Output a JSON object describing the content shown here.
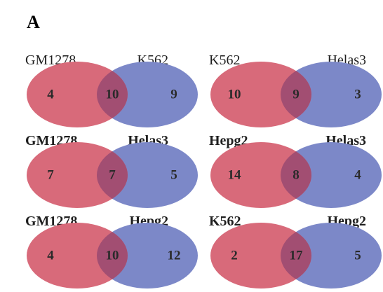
{
  "panel_label": "A",
  "colors": {
    "left": "#d86a7a",
    "right": "#7c88c8",
    "overlap": "#a24e72"
  },
  "venns": [
    {
      "left_label": "GM1278",
      "right_label": "K562",
      "left_only": "4",
      "overlap": "10",
      "right_only": "9",
      "bold_labels": false
    },
    {
      "left_label": "K562",
      "right_label": "Helas3",
      "left_only": "10",
      "overlap": "9",
      "right_only": "3",
      "bold_labels": false
    },
    {
      "left_label": "GM1278",
      "right_label": "Helas3",
      "left_only": "7",
      "overlap": "7",
      "right_only": "5",
      "bold_labels": true
    },
    {
      "left_label": "Hepg2",
      "right_label": "Helas3",
      "left_only": "14",
      "overlap": "8",
      "right_only": "4",
      "bold_labels": true
    },
    {
      "left_label": "GM1278",
      "right_label": "Hepg2",
      "left_only": "4",
      "overlap": "10",
      "right_only": "12",
      "bold_labels": true
    },
    {
      "left_label": "K562",
      "right_label": "Hepg2",
      "left_only": "2",
      "overlap": "17",
      "right_only": "5",
      "bold_labels": true
    }
  ]
}
